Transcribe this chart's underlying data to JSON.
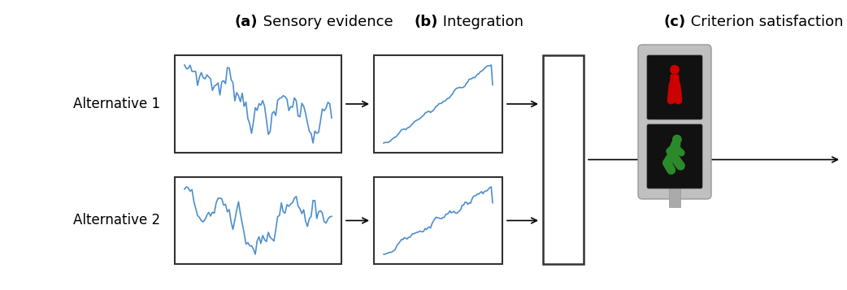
{
  "label_a_bold": "(a)",
  "label_a_normal": " Sensory evidence",
  "label_b_bold": "(b)",
  "label_b_normal": " Integration",
  "label_c_bold": "(c)",
  "label_c_normal": " Criterion satisfaction",
  "alt1_label": "Alternative 1",
  "alt2_label": "Alternative 2",
  "line_color": "#4d8fcc",
  "background": "#ffffff",
  "box_edgecolor": "#333333",
  "arrow_color": "#000000",
  "traffic_gray": "#aaaaaa",
  "traffic_black": "#111111",
  "traffic_red": "#cc0000",
  "traffic_green": "#2a8a2a",
  "seed_noise1": 7,
  "seed_noise2": 15,
  "seed_integ1": 3,
  "seed_integ2": 9,
  "fontsize_label": 13,
  "fontsize_alt": 12
}
